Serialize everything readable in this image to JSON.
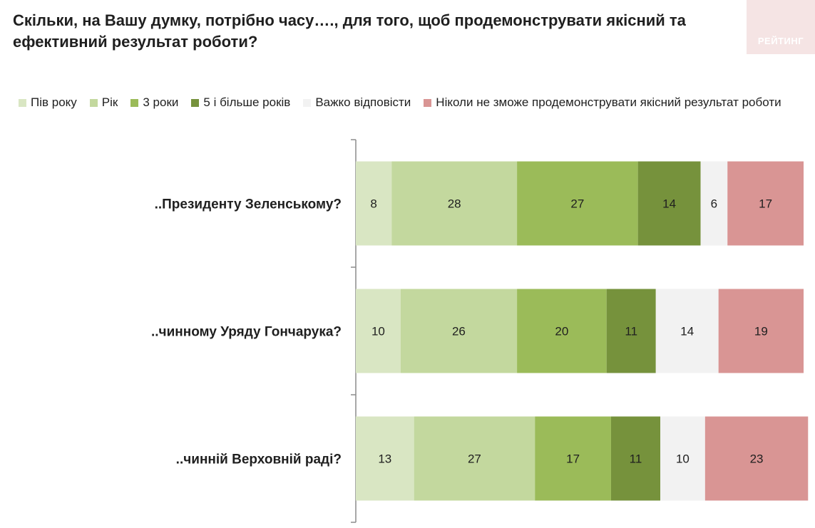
{
  "title": "Скільки, на Вашу думку, потрібно часу…., для того, щоб продемонструвати якісний та ефективний результат роботи?",
  "logo_text": "РЕЙТИНГ",
  "chart_data": {
    "type": "bar",
    "orientation": "horizontal",
    "stacked": true,
    "title": "Скільки, на Вашу думку, потрібно часу…., для того, щоб продемонструвати якісний та ефективний результат роботи?",
    "categories": [
      "..Президенту Зеленському?",
      "..чинному Уряду Гончарука?",
      "..чинній Верховній раді?"
    ],
    "series": [
      {
        "name": "Пів року",
        "color": "#d9e6c3",
        "values": [
          8,
          10,
          13
        ]
      },
      {
        "name": "Рік",
        "color": "#c3d89e",
        "values": [
          28,
          26,
          27
        ]
      },
      {
        "name": "3 роки",
        "color": "#9bbb59",
        "values": [
          27,
          20,
          17
        ]
      },
      {
        "name": "5 і більше років",
        "color": "#76923c",
        "values": [
          14,
          11,
          11
        ]
      },
      {
        "name": "Важко відповісти",
        "color": "#f2f2f2",
        "values": [
          6,
          14,
          10
        ]
      },
      {
        "name": "Ніколи не зможе продемонструвати якісний результат роботи",
        "color": "#d99594",
        "values": [
          17,
          19,
          23
        ]
      }
    ],
    "xlim": [
      0,
      100
    ],
    "legend_position": "top",
    "grid": false
  }
}
